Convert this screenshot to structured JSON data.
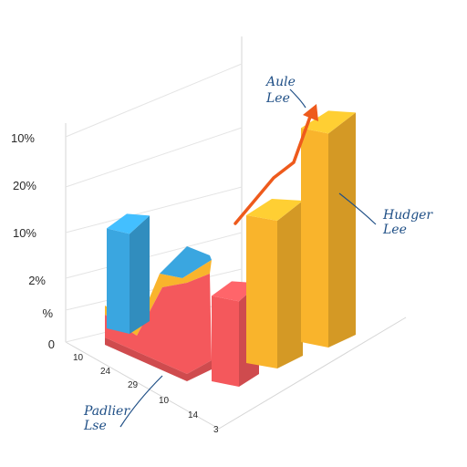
{
  "chart_data": {
    "type": "bar",
    "title": "",
    "y_tick_labels": [
      "0",
      "%",
      "2%",
      "10%",
      "20%",
      "10%"
    ],
    "x_tick_labels": [
      "10",
      "24",
      "29",
      "10",
      "14",
      "3"
    ],
    "bars": [
      {
        "name": "",
        "color": "#3aa6e0",
        "value": 0.38
      },
      {
        "name": "",
        "color": "#f4585c",
        "value": 0.33
      },
      {
        "name": "",
        "color": "#f9b42c",
        "value": 0.55
      },
      {
        "name": "",
        "color": "#f9b42c",
        "value": 0.78
      }
    ],
    "area": {
      "colors": [
        "#f4585c",
        "#f9b42c",
        "#3aa6e0"
      ]
    },
    "trend_color": "#ee5a1c",
    "annotations": [
      {
        "lines": [
          "Aule",
          "Lee"
        ]
      },
      {
        "lines": [
          "Hudger",
          "Lee"
        ]
      },
      {
        "lines": [
          "Padlier",
          "Lse"
        ]
      }
    ]
  }
}
